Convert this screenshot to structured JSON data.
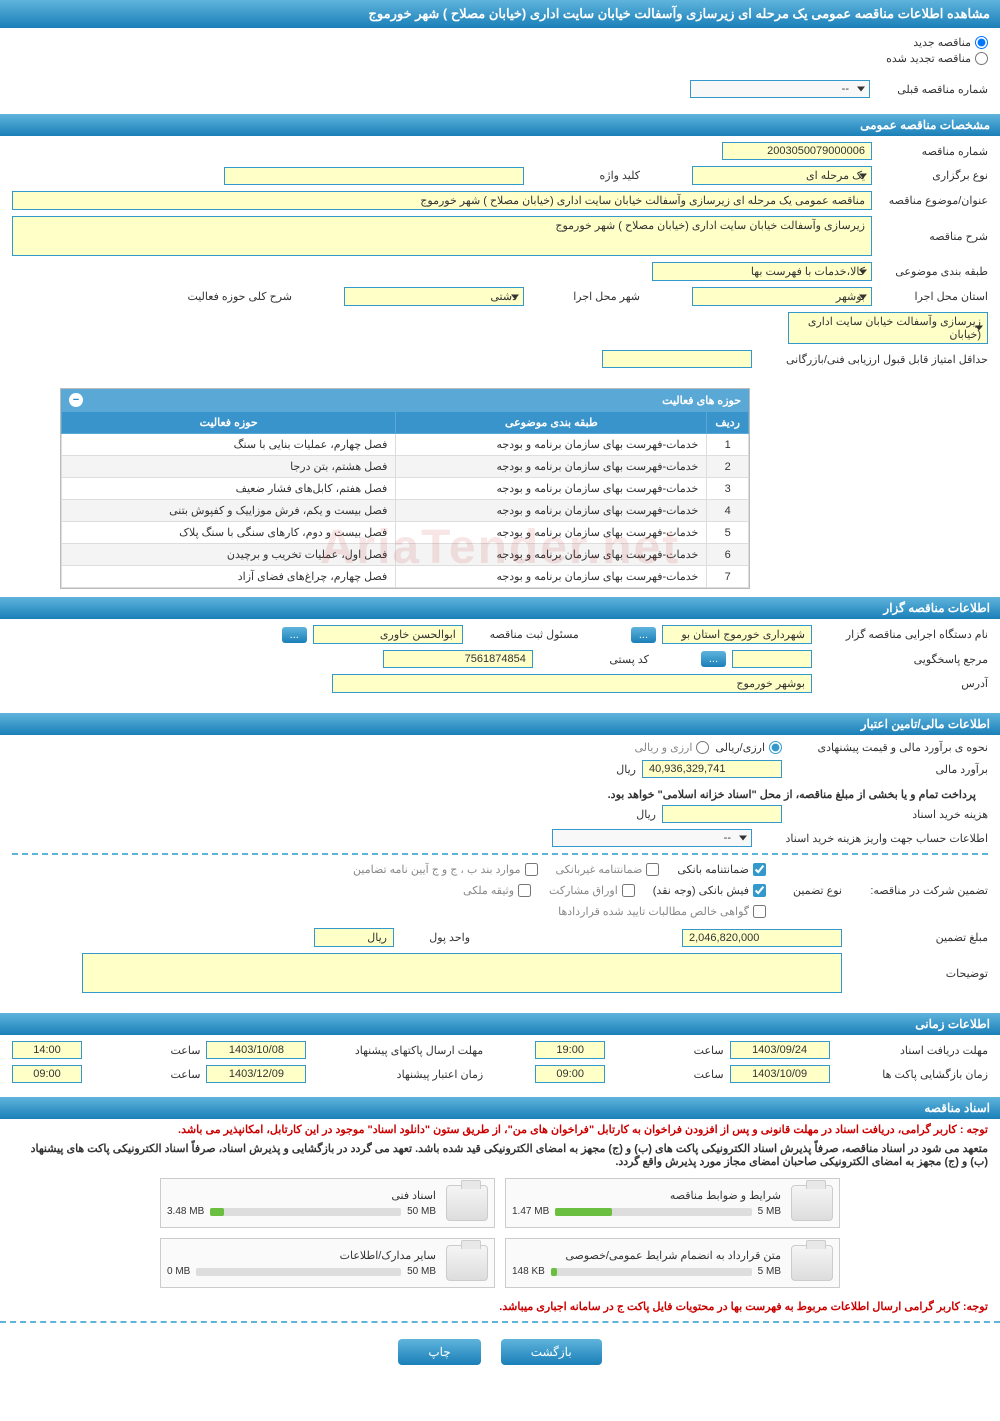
{
  "title": "مشاهده اطلاعات مناقصه عمومی یک مرحله ای زیرسازی وآسفالت خیابان سایت اداری (خیابان مصلاح ) شهر خورموج",
  "radio": {
    "new": "مناقصه جدید",
    "renewed": "مناقصه تجدید شده"
  },
  "prev": {
    "label": "شماره مناقصه قبلی",
    "value": "--"
  },
  "sec_general": "مشخصات مناقصه عمومی",
  "general": {
    "tender_no_lbl": "شماره مناقصه",
    "tender_no": "2003050079000006",
    "type_lbl": "نوع برگزاری",
    "type": "یک مرحله ای",
    "keyword_lbl": "کلید واژه",
    "keyword": "",
    "title_lbl": "عنوان/موضوع مناقصه",
    "title_val": "مناقصه عمومی یک مرحله ای زیرسازی وآسفالت خیابان سایت اداری (خیابان مصلاح ) شهر خورموج",
    "desc_lbl": "شرح مناقصه",
    "desc": "زیرسازی وآسفالت خیابان سایت اداری (خیابان مصلاح ) شهر خورموج",
    "class_lbl": "طبقه بندی موضوعی",
    "class": "کالا،خدمات با فهرست بها",
    "prov_lbl": "استان محل اجرا",
    "prov": "بوشهر",
    "city_lbl": "شهر محل اجرا",
    "city": "دشتی",
    "activity_lbl": "شرح کلی حوزه فعالیت",
    "activity": "زیرسازی وآسفالت خیابان سایت اداری (خیابان",
    "min_score_lbl": "حداقل امتیاز قابل قبول ارزیابی فنی/بازرگانی",
    "min_score": ""
  },
  "act_table": {
    "header": "حوزه های فعالیت",
    "cols": {
      "idx": "ردیف",
      "cat": "طبقه بندی موضوعی",
      "area": "حوزه فعالیت"
    },
    "rows": [
      {
        "i": "1",
        "cat": "خدمات-فهرست بهای سازمان برنامه و بودجه",
        "area": "فصل چهارم، عملیات بنایی با سنگ"
      },
      {
        "i": "2",
        "cat": "خدمات-فهرست بهای سازمان برنامه و بودجه",
        "area": "فصل هشتم، بتن درجا"
      },
      {
        "i": "3",
        "cat": "خدمات-فهرست بهای سازمان برنامه و بودجه",
        "area": "فصل هفتم، کابل‌های فشار ضعیف"
      },
      {
        "i": "4",
        "cat": "خدمات-فهرست بهای سازمان برنامه و بودجه",
        "area": "فصل بیست و یکم، فرش موزاییک و کفپوش بتنی"
      },
      {
        "i": "5",
        "cat": "خدمات-فهرست بهای سازمان برنامه و بودجه",
        "area": "فصل بیست و دوم، کارهای سنگی با سنگ پلاک"
      },
      {
        "i": "6",
        "cat": "خدمات-فهرست بهای سازمان برنامه و بودجه",
        "area": "فصل اول، عملیات تخریب و برچیدن"
      },
      {
        "i": "7",
        "cat": "خدمات-فهرست بهای سازمان برنامه و بودجه",
        "area": "فصل چهارم، چراغ‌های فضای آزاد"
      }
    ]
  },
  "sec_holder": "اطلاعات مناقصه گزار",
  "holder": {
    "org_lbl": "نام دستگاه اجرایی مناقصه گزار",
    "org": "شهرداری خورموج استان بو",
    "reg_lbl": "مسئول ثبت مناقصه",
    "reg": "ابوالحسن خاوری",
    "resp_lbl": "مرجع پاسخگویی",
    "resp": "",
    "zip_lbl": "کد پستی",
    "zip": "7561874854",
    "addr_lbl": "آدرس",
    "addr": "بوشهر خورموج"
  },
  "sec_fin": "اطلاعات مالی/تامین اعتبار",
  "fin": {
    "method_lbl": "نحوه ی برآورد مالی و قیمت پیشنهادی",
    "m1": "ارزی/ریالی",
    "m2": "ارزی و ریالی",
    "est_lbl": "برآورد مالی",
    "est": "40,936,329,741",
    "unit": "ریال",
    "note": "پرداخت تمام و یا بخشی از مبلغ مناقصه، از محل \"اسناد خزانه اسلامی\" خواهد بود.",
    "doc_fee_lbl": "هزینه خرید اسناد",
    "doc_fee": "",
    "acc_lbl": "اطلاعات حساب جهت واریز هزینه خرید اسناد",
    "acc": "--",
    "guar_lbl": "تضمین شرکت در مناقصه:",
    "guar_type": "نوع تضمین",
    "g1": "ضمانتنامه بانکی",
    "g2": "ضمانتنامه غیربانکی",
    "g3": "موارد بند ب ، ج و ج آیین نامه تضامین",
    "g4": "فیش بانکی (وجه نقد)",
    "g5": "اوراق مشارکت",
    "g6": "وثیقه ملکی",
    "g7": "گواهی خالص مطالبات تایید شده قراردادها",
    "guar_amt_lbl": "مبلغ تضمین",
    "guar_amt": "2,046,820,000",
    "unit_lbl": "واحد پول",
    "unit2": "ریال",
    "remarks_lbl": "توضیحات"
  },
  "sec_time": "اطلاعات زمانی",
  "time": {
    "recv_lbl": "مهلت دریافت اسناد",
    "recv_d": "1403/09/24",
    "recv_t": "19:00",
    "send_lbl": "مهلت ارسال پاکتهای پیشنهاد",
    "send_d": "1403/10/08",
    "send_t": "14:00",
    "open_lbl": "زمان بازگشایی پاکت ها",
    "open_d": "1403/10/09",
    "open_t": "09:00",
    "valid_lbl": "زمان اعتبار پیشنهاد",
    "valid_d": "1403/12/09",
    "valid_t": "09:00",
    "hour": "ساعت"
  },
  "sec_docs": "اسناد مناقصه",
  "docs": {
    "note1": "توجه : کاربر گرامی، دریافت اسناد در مهلت قانونی و پس از افزودن فراخوان به کارتابل \"فراخوان های من\"، از طریق ستون \"دانلود اسناد\" موجود در این کارتابل، امکانپذیر می باشد.",
    "note2": "متعهد می شود در اسناد مناقصه، صرفاً پذیرش اسناد الکترونیکی پاکت های (ب) و (ج) مجهز به امضای الکترونیکی قید شده باشد. تعهد می گردد در بازگشایی و پذیرش اسناد، صرفاً اسناد الکترونیکی پاکت های پیشنهاد (ب) و (ج) مجهز به امضای الکترونیکی صاحبان امضای مجاز مورد پذیرش واقع گردد.",
    "list": [
      {
        "title": "شرایط و ضوابط مناقصه",
        "used": "1.47 MB",
        "total": "5 MB",
        "pct": 29
      },
      {
        "title": "اسناد فنی",
        "used": "3.48 MB",
        "total": "50 MB",
        "pct": 7
      },
      {
        "title": "متن قرارداد به انضمام شرایط عمومی/خصوصی",
        "used": "148 KB",
        "total": "5 MB",
        "pct": 3
      },
      {
        "title": "سایر مدارک/اطلاعات",
        "used": "0 MB",
        "total": "50 MB",
        "pct": 0
      }
    ],
    "foot_note": "توجه: کاربر گرامی ارسال اطلاعات مربوط به فهرست بها در محتویات فایل پاکت ج در سامانه اجباری میباشد."
  },
  "buttons": {
    "back": "بازگشت",
    "print": "چاپ",
    "more": "..."
  },
  "watermark": "AriaTender.net"
}
